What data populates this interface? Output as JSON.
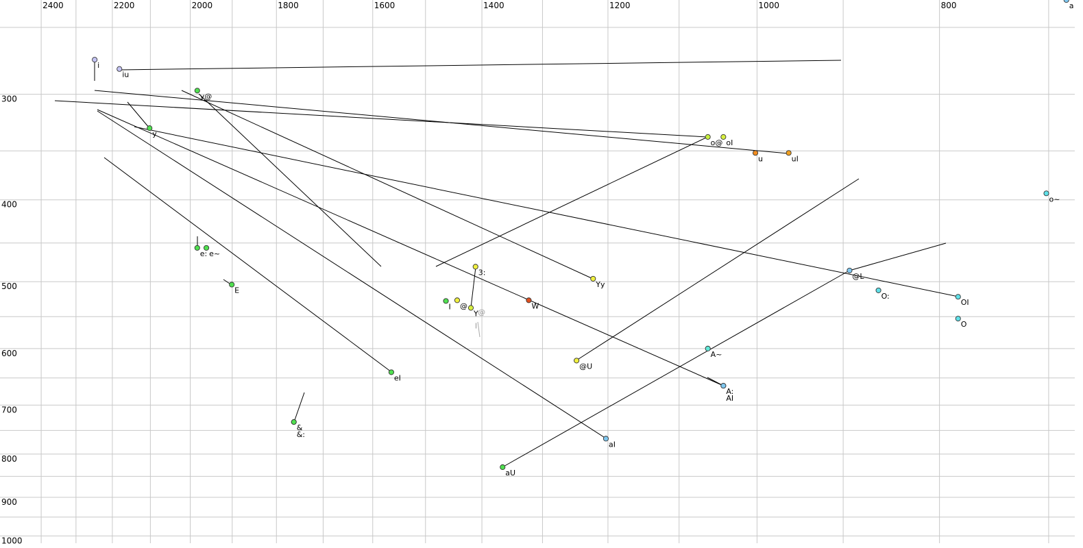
{
  "chart_data": {
    "type": "scatter",
    "log_scale": true,
    "xreversed": true,
    "grid": true,
    "xlim": [
      2524,
      678
    ],
    "ylim": [
      232,
      1020
    ],
    "xticks": [
      2400,
      2200,
      2000,
      1800,
      1600,
      1400,
      1200,
      1000,
      800
    ],
    "xminor": [
      2300,
      2100,
      1900,
      1700,
      1500,
      1300,
      1100,
      900,
      700
    ],
    "yticks": [
      300,
      400,
      500,
      600,
      700,
      800,
      900,
      1000
    ],
    "yminor": [
      250,
      350,
      450,
      550,
      650,
      750,
      850,
      950
    ],
    "point_labels": [
      "i",
      "iu",
      "y@",
      "y",
      "o@",
      "oI",
      "u",
      "uI",
      "o~",
      "e:",
      "e~",
      "E",
      "eI",
      "&",
      "&:",
      "3:",
      "I",
      "@",
      "Y",
      "W",
      "Yy",
      "@U",
      "A~",
      "A:",
      "AI",
      "aI",
      "aU",
      "@L",
      "O:",
      "OI",
      "O",
      "a"
    ],
    "x": [
      2248,
      2181,
      1983,
      2102,
      1062,
      1042,
      1002,
      962,
      702,
      1983,
      1961,
      1901,
      1564,
      1762,
      1762,
      1411,
      1463,
      1443,
      1419,
      1322,
      1222,
      1247,
      1062,
      1042,
      1042,
      1203,
      1365,
      893,
      862,
      782,
      782,
      685
    ],
    "values": [
      273,
      280,
      297,
      329,
      337,
      337,
      352,
      352,
      393,
      456,
      456,
      504,
      640,
      733,
      733,
      480,
      527,
      526,
      537,
      526,
      496,
      620,
      600,
      664,
      664,
      767,
      829,
      485,
      512,
      521,
      553,
      232
    ],
    "colors": [
      "#c4c4f4",
      "#c4c4f4",
      "#50e050",
      "#50e050",
      "#c8f040",
      "#d8f040",
      "#f08c20",
      "#f0a020",
      "#60e0e8",
      "#50e050",
      "#50e050",
      "#50e050",
      "#50e050",
      "#50e050",
      "#50e050",
      "#f0f040",
      "#50e050",
      "#f0f040",
      "#d8f040",
      "#e05020",
      "#f0f040",
      "#f0f040",
      "#60e8d8",
      "#80c8f0",
      "#80c8f0",
      "#80c8f0",
      "#50e050",
      "#80c8f0",
      "#60e0e8",
      "#60e0e8",
      "#60e0e8",
      "#80c8f0"
    ],
    "faded_labels": [
      "@",
      "I"
    ],
    "faded_x": [
      1407,
      1412
    ],
    "faded_values": [
      543,
      564
    ]
  }
}
